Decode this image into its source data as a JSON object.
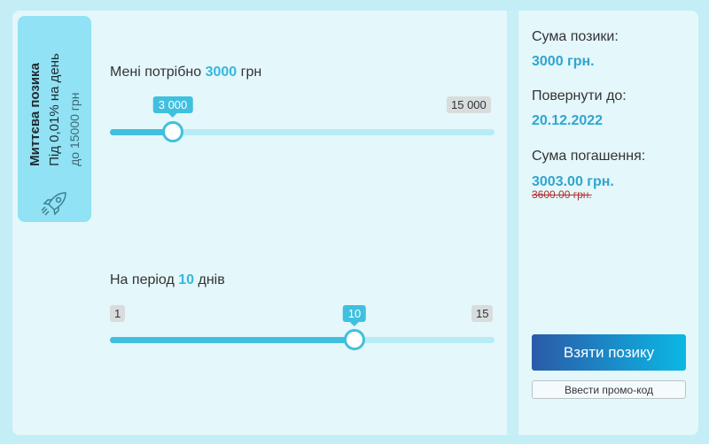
{
  "product_tab": {
    "title": "Миттєва позика",
    "rate": "Під 0,01% на день",
    "limit": "до 15000 грн"
  },
  "amount_slider": {
    "prefix": "Мені потрібно",
    "value": "3000",
    "unit": "грн",
    "bubble": "3 000",
    "max": "15 000"
  },
  "period_slider": {
    "prefix": "На період",
    "value": "10",
    "unit": "днів",
    "min": "1",
    "bubble": "10",
    "max": "15"
  },
  "summary": {
    "amount_label": "Сума позики:",
    "amount": "3000 грн.",
    "due_label": "Повернути до:",
    "due_date": "20.12.2022",
    "repay_label": "Сума погашення:",
    "repay": "3003.00 грн.",
    "old_repay": "3600.00 грн."
  },
  "buttons": {
    "submit": "Взяти позику",
    "promo": "Ввести промо-код"
  }
}
